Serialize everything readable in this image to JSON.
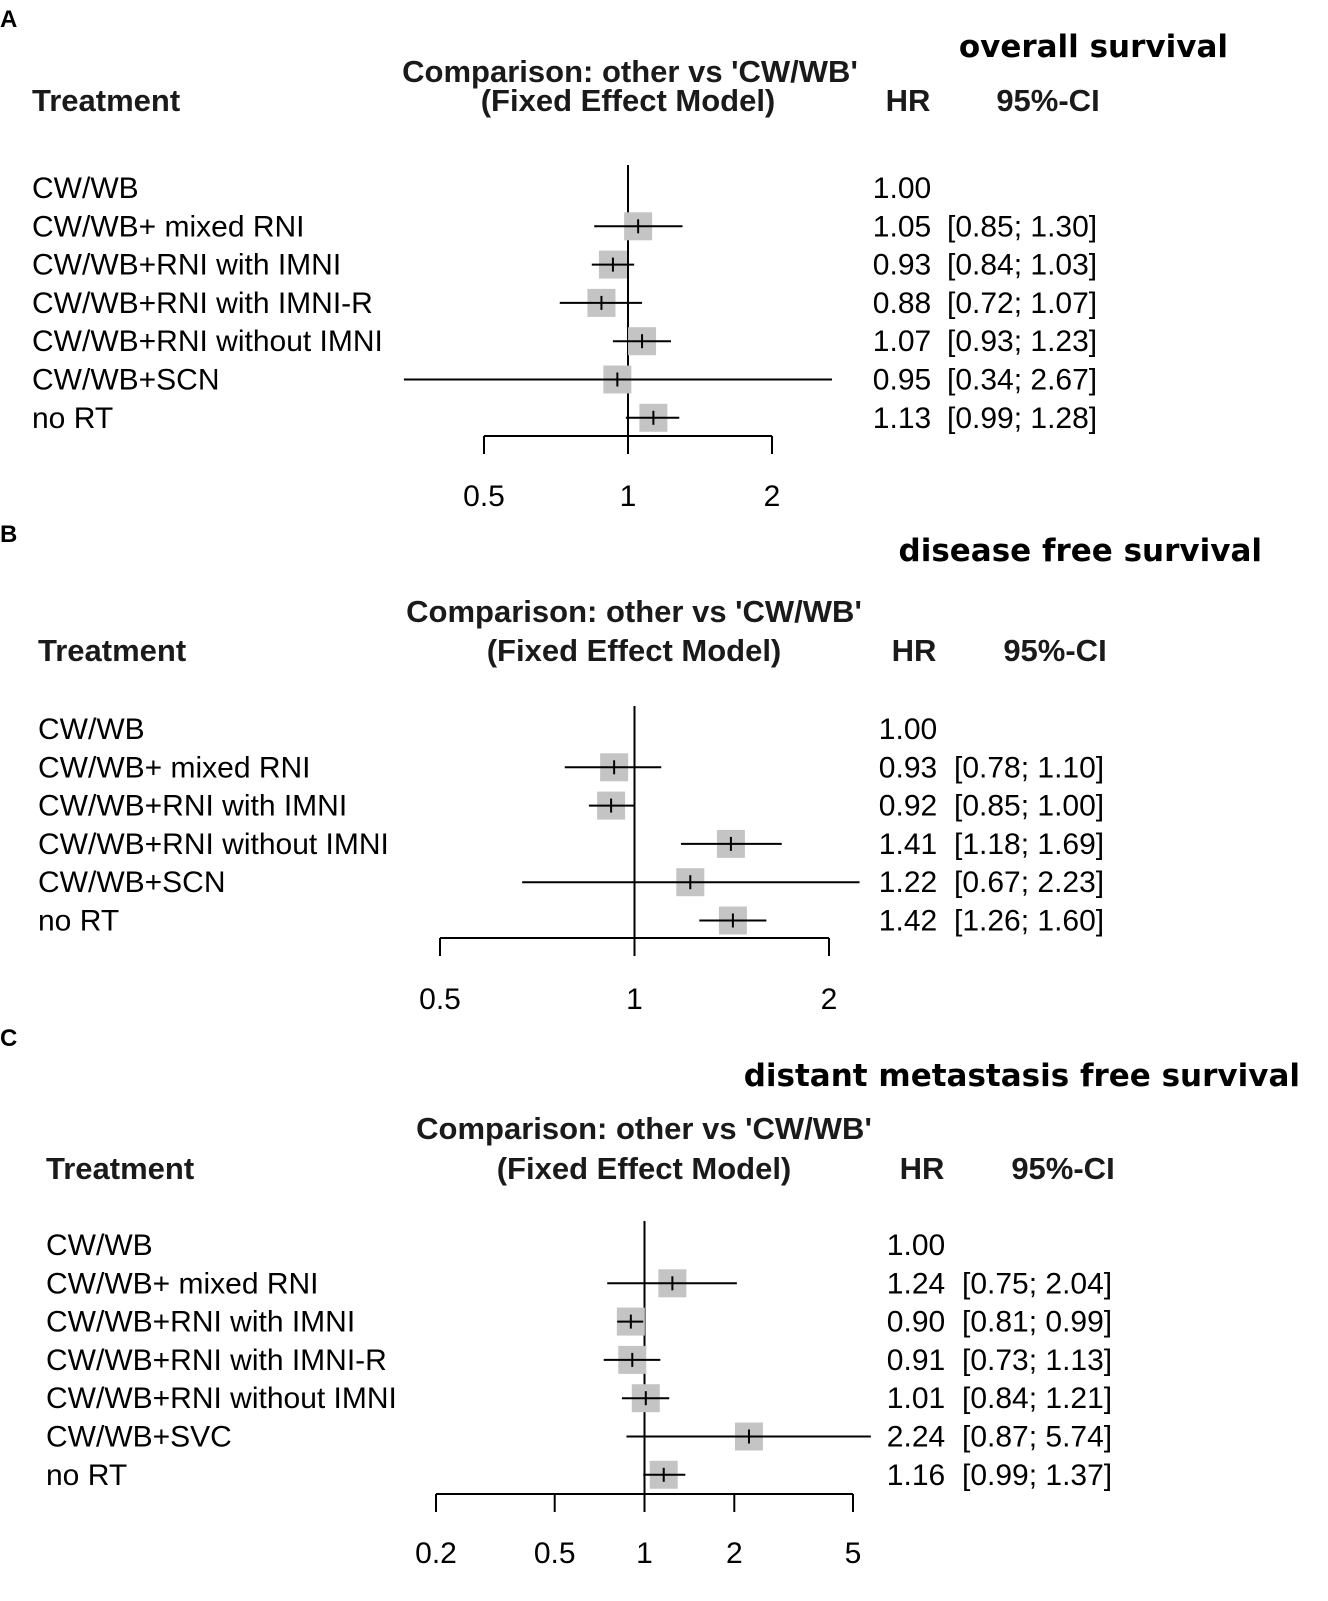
{
  "chart_data": [
    {
      "type": "forest",
      "panel": "A",
      "outcome_title": "overall survival",
      "comparison_title": "Comparison: other vs 'CW/WB'",
      "model_label": "(Fixed Effect Model)",
      "col_treatment": "Treatment",
      "col_hr": "HR",
      "col_ci": "95%-CI",
      "xscale": "log",
      "xlim": [
        0.5,
        2
      ],
      "ticks": [
        0.5,
        1,
        2
      ],
      "tick_labels": [
        "0.5",
        "1",
        "2"
      ],
      "reference": 1,
      "rows": [
        {
          "name": "CW/WB",
          "hr": 1.0,
          "lo": null,
          "hi": null,
          "hr_text": "1.00",
          "ci_text": ""
        },
        {
          "name": "CW/WB+ mixed RNI",
          "hr": 1.05,
          "lo": 0.85,
          "hi": 1.3,
          "hr_text": "1.05",
          "ci_text": "[0.85; 1.30]"
        },
        {
          "name": "CW/WB+RNI with IMNI",
          "hr": 0.93,
          "lo": 0.84,
          "hi": 1.03,
          "hr_text": "0.93",
          "ci_text": "[0.84; 1.03]"
        },
        {
          "name": "CW/WB+RNI with IMNI-R",
          "hr": 0.88,
          "lo": 0.72,
          "hi": 1.07,
          "hr_text": "0.88",
          "ci_text": "[0.72; 1.07]"
        },
        {
          "name": "CW/WB+RNI without IMNI",
          "hr": 1.07,
          "lo": 0.93,
          "hi": 1.23,
          "hr_text": "1.07",
          "ci_text": "[0.93; 1.23]"
        },
        {
          "name": "CW/WB+SCN",
          "hr": 0.95,
          "lo": 0.34,
          "hi": 2.67,
          "hr_text": "0.95",
          "ci_text": "[0.34; 2.67]"
        },
        {
          "name": "no RT",
          "hr": 1.13,
          "lo": 0.99,
          "hi": 1.28,
          "hr_text": "1.13",
          "ci_text": "[0.99; 1.28]"
        }
      ]
    },
    {
      "type": "forest",
      "panel": "B",
      "outcome_title": "disease free survival",
      "comparison_title": "Comparison: other vs 'CW/WB'",
      "model_label": "(Fixed Effect Model)",
      "col_treatment": "Treatment",
      "col_hr": "HR",
      "col_ci": "95%-CI",
      "xscale": "log",
      "xlim": [
        0.5,
        2
      ],
      "ticks": [
        0.5,
        1,
        2
      ],
      "tick_labels": [
        "0.5",
        "1",
        "2"
      ],
      "reference": 1,
      "rows": [
        {
          "name": "CW/WB",
          "hr": 1.0,
          "lo": null,
          "hi": null,
          "hr_text": "1.00",
          "ci_text": ""
        },
        {
          "name": "CW/WB+ mixed RNI",
          "hr": 0.93,
          "lo": 0.78,
          "hi": 1.1,
          "hr_text": "0.93",
          "ci_text": "[0.78; 1.10]"
        },
        {
          "name": "CW/WB+RNI with IMNI",
          "hr": 0.92,
          "lo": 0.85,
          "hi": 1.0,
          "hr_text": "0.92",
          "ci_text": "[0.85; 1.00]"
        },
        {
          "name": "CW/WB+RNI without IMNI",
          "hr": 1.41,
          "lo": 1.18,
          "hi": 1.69,
          "hr_text": "1.41",
          "ci_text": "[1.18; 1.69]"
        },
        {
          "name": "CW/WB+SCN",
          "hr": 1.22,
          "lo": 0.67,
          "hi": 2.23,
          "hr_text": "1.22",
          "ci_text": "[0.67; 2.23]"
        },
        {
          "name": "no RT",
          "hr": 1.42,
          "lo": 1.26,
          "hi": 1.6,
          "hr_text": "1.42",
          "ci_text": "[1.26; 1.60]"
        }
      ]
    },
    {
      "type": "forest",
      "panel": "C",
      "outcome_title": "distant metastasis free survival",
      "comparison_title": "Comparison: other vs 'CW/WB'",
      "model_label": "(Fixed Effect Model)",
      "col_treatment": "Treatment",
      "col_hr": "HR",
      "col_ci": "95%-CI",
      "xscale": "log",
      "xlim": [
        0.2,
        5
      ],
      "ticks": [
        0.2,
        0.5,
        1,
        2,
        5
      ],
      "tick_labels": [
        "0.2",
        "0.5",
        "1",
        "2",
        "5"
      ],
      "reference": 1,
      "rows": [
        {
          "name": "CW/WB",
          "hr": 1.0,
          "lo": null,
          "hi": null,
          "hr_text": "1.00",
          "ci_text": ""
        },
        {
          "name": "CW/WB+ mixed RNI",
          "hr": 1.24,
          "lo": 0.75,
          "hi": 2.04,
          "hr_text": "1.24",
          "ci_text": "[0.75; 2.04]"
        },
        {
          "name": "CW/WB+RNI with IMNI",
          "hr": 0.9,
          "lo": 0.81,
          "hi": 0.99,
          "hr_text": "0.90",
          "ci_text": "[0.81; 0.99]"
        },
        {
          "name": "CW/WB+RNI with IMNI-R",
          "hr": 0.91,
          "lo": 0.73,
          "hi": 1.13,
          "hr_text": "0.91",
          "ci_text": "[0.73; 1.13]"
        },
        {
          "name": "CW/WB+RNI without IMNI",
          "hr": 1.01,
          "lo": 0.84,
          "hi": 1.21,
          "hr_text": "1.01",
          "ci_text": "[0.84; 1.21]"
        },
        {
          "name": "CW/WB+SVC",
          "hr": 2.24,
          "lo": 0.87,
          "hi": 5.74,
          "hr_text": "2.24",
          "ci_text": "[0.87; 5.74]"
        },
        {
          "name": "no RT",
          "hr": 1.16,
          "lo": 0.99,
          "hi": 1.37,
          "hr_text": "1.16",
          "ci_text": "[0.99; 1.37]"
        }
      ]
    }
  ],
  "colors": {
    "box": "#c4c4c4",
    "line": "#000000",
    "text": "#000000"
  }
}
